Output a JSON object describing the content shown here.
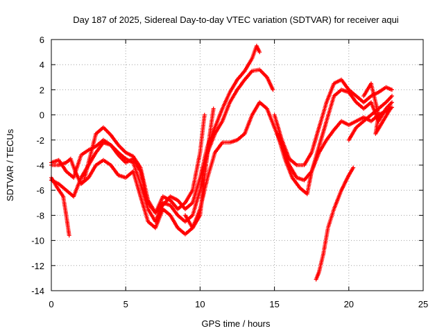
{
  "chart_data": {
    "type": "scatter",
    "title": "Day 187 of 2025, Sidereal Day-to-day VTEC variation (SDTVAR) for receiver aqui",
    "xlabel": "GPS time / hours",
    "ylabel": "SDTVAR / TECUs",
    "xlim": [
      0,
      25
    ],
    "ylim": [
      -14,
      6
    ],
    "xticks": [
      0,
      5,
      10,
      15,
      20,
      25
    ],
    "yticks": [
      -14,
      -12,
      -10,
      -8,
      -6,
      -4,
      -2,
      0,
      2,
      4,
      6
    ],
    "grid": true,
    "marker": "+",
    "color": "#ff0000",
    "series": [
      {
        "name": "track-1",
        "points": [
          [
            0,
            -3.8
          ],
          [
            0.5,
            -3.6
          ],
          [
            1,
            -4.5
          ],
          [
            1.5,
            -5
          ],
          [
            2,
            -3.2
          ],
          [
            2.5,
            -2.8
          ],
          [
            3,
            -2.5
          ],
          [
            3.5,
            -2
          ],
          [
            4,
            -2.4
          ],
          [
            4.5,
            -3.2
          ],
          [
            5,
            -3.8
          ],
          [
            5.5,
            -3.5
          ],
          [
            6,
            -4.5
          ],
          [
            6.5,
            -7
          ],
          [
            7,
            -7.8
          ],
          [
            7.5,
            -7.2
          ],
          [
            8,
            -6.5
          ],
          [
            8.5,
            -6.8
          ],
          [
            9,
            -7.5
          ],
          [
            9.5,
            -7
          ],
          [
            10,
            -5
          ],
          [
            10.5,
            -2.5
          ],
          [
            11,
            -1
          ],
          [
            11.5,
            0.5
          ],
          [
            12,
            1.8
          ],
          [
            12.5,
            2.8
          ],
          [
            13,
            3.5
          ],
          [
            13.5,
            4.5
          ],
          [
            13.8,
            5.5
          ],
          [
            14,
            5
          ]
        ]
      },
      {
        "name": "track-2",
        "points": [
          [
            0,
            -5.2
          ],
          [
            0.5,
            -5.5
          ],
          [
            1,
            -6
          ],
          [
            1.5,
            -6.5
          ],
          [
            2,
            -5
          ],
          [
            2.5,
            -4
          ],
          [
            3,
            -3
          ],
          [
            3.5,
            -2.2
          ],
          [
            4,
            -2.4
          ],
          [
            4.5,
            -3
          ],
          [
            5,
            -3.5
          ],
          [
            5.5,
            -3.8
          ],
          [
            6,
            -5.5
          ],
          [
            6.5,
            -7.5
          ],
          [
            7,
            -8.5
          ],
          [
            7.5,
            -7
          ],
          [
            8,
            -7.2
          ],
          [
            8.5,
            -8
          ],
          [
            9,
            -8.5
          ],
          [
            9.5,
            -8
          ],
          [
            10,
            -6
          ],
          [
            10.5,
            -3
          ],
          [
            11,
            -1.5
          ],
          [
            11.5,
            -0.5
          ],
          [
            12,
            1
          ],
          [
            12.5,
            2
          ],
          [
            13,
            2.8
          ],
          [
            13.5,
            3.5
          ],
          [
            14,
            3.6
          ],
          [
            14.5,
            3
          ],
          [
            14.9,
            2
          ]
        ]
      },
      {
        "name": "track-3",
        "points": [
          [
            2.2,
            -5.2
          ],
          [
            2.5,
            -3.8
          ],
          [
            3,
            -1.5
          ],
          [
            3.5,
            -1
          ],
          [
            4,
            -1.6
          ],
          [
            4.5,
            -2.4
          ],
          [
            5,
            -3
          ],
          [
            5.5,
            -3.3
          ],
          [
            6,
            -4.2
          ],
          [
            6.5,
            -6.8
          ],
          [
            7,
            -7.8
          ],
          [
            7.5,
            -6.5
          ],
          [
            8,
            -6.8
          ],
          [
            8.5,
            -7.5
          ],
          [
            9,
            -7
          ],
          [
            9.5,
            -6
          ],
          [
            10,
            -3
          ],
          [
            10.3,
            0
          ]
        ]
      },
      {
        "name": "track-4",
        "points": [
          [
            0,
            -4
          ],
          [
            0.5,
            -4
          ],
          [
            1,
            -3.8
          ],
          [
            1.3,
            -3.5
          ],
          [
            1.6,
            -4.5
          ],
          [
            2,
            -5.5
          ],
          [
            2.5,
            -5
          ],
          [
            3,
            -4
          ],
          [
            3.5,
            -3.6
          ],
          [
            4,
            -4
          ],
          [
            4.5,
            -4.8
          ],
          [
            5,
            -5
          ],
          [
            5.5,
            -4.5
          ],
          [
            6,
            -6.5
          ],
          [
            6.5,
            -8.5
          ],
          [
            7,
            -9
          ],
          [
            7.5,
            -7.5
          ],
          [
            8,
            -8
          ],
          [
            8.5,
            -9
          ],
          [
            9,
            -9.5
          ],
          [
            9.5,
            -9
          ],
          [
            10,
            -7.5
          ],
          [
            10.5,
            -5
          ],
          [
            11,
            -3
          ],
          [
            11.5,
            -2.2
          ],
          [
            12,
            -2.2
          ],
          [
            12.5,
            -2
          ],
          [
            13,
            -1.5
          ],
          [
            13.5,
            0
          ],
          [
            14,
            1
          ],
          [
            14.5,
            0.5
          ],
          [
            15,
            -1
          ],
          [
            15.5,
            -2.5
          ],
          [
            16,
            -4
          ],
          [
            16.5,
            -5
          ],
          [
            17,
            -5.2
          ],
          [
            17.5,
            -4.5
          ],
          [
            18,
            -3
          ],
          [
            18.5,
            -2
          ],
          [
            19,
            -1.2
          ],
          [
            19.5,
            -0.5
          ],
          [
            20,
            -0.8
          ],
          [
            20.5,
            -0.5
          ],
          [
            21,
            -0.2
          ],
          [
            21.5,
            -0.5
          ],
          [
            22,
            0
          ],
          [
            22.5,
            0.3
          ],
          [
            22.9,
            0.6
          ]
        ]
      },
      {
        "name": "track-5",
        "points": [
          [
            0,
            -5
          ],
          [
            0.4,
            -5.8
          ],
          [
            0.8,
            -6.5
          ],
          [
            1,
            -8
          ],
          [
            1.2,
            -9.6
          ]
        ]
      },
      {
        "name": "track-6",
        "points": [
          [
            9,
            -8
          ],
          [
            9.5,
            -9
          ],
          [
            10,
            -8
          ],
          [
            10.3,
            -5
          ],
          [
            10.6,
            -2
          ],
          [
            10.9,
            0.5
          ]
        ]
      },
      {
        "name": "track-7",
        "points": [
          [
            15,
            0
          ],
          [
            15.5,
            -2
          ],
          [
            16,
            -3.5
          ],
          [
            16.5,
            -4
          ],
          [
            17,
            -4
          ],
          [
            17.5,
            -3
          ],
          [
            18,
            -1
          ],
          [
            18.5,
            1
          ],
          [
            19,
            2.5
          ],
          [
            19.5,
            2.8
          ],
          [
            20,
            2
          ],
          [
            20.5,
            1.5
          ],
          [
            21,
            1
          ],
          [
            21.5,
            1.5
          ],
          [
            22,
            1.8
          ],
          [
            22.5,
            2.2
          ],
          [
            22.9,
            2
          ]
        ]
      },
      {
        "name": "track-8",
        "points": [
          [
            15.2,
            -1.5
          ],
          [
            15.7,
            -3.5
          ],
          [
            16.2,
            -5
          ],
          [
            16.7,
            -5.8
          ],
          [
            17.2,
            -6.3
          ],
          [
            17.5,
            -4.5
          ],
          [
            18,
            -2.5
          ],
          [
            18.5,
            -0.5
          ],
          [
            19,
            1.5
          ],
          [
            19.5,
            2
          ],
          [
            20,
            1.8
          ],
          [
            20.5,
            1
          ],
          [
            21,
            0.5
          ],
          [
            21.5,
            1
          ],
          [
            22,
            -0.5
          ],
          [
            22.5,
            0.5
          ],
          [
            22.9,
            1
          ]
        ]
      },
      {
        "name": "track-9",
        "points": [
          [
            17.8,
            -13.1
          ],
          [
            18,
            -12.5
          ],
          [
            18.3,
            -11
          ],
          [
            18.6,
            -9
          ],
          [
            19,
            -7.5
          ],
          [
            19.5,
            -6
          ],
          [
            20,
            -4.8
          ],
          [
            20.3,
            -4.2
          ]
        ]
      },
      {
        "name": "track-10",
        "points": [
          [
            20,
            -2
          ],
          [
            20.5,
            -1
          ],
          [
            21,
            -0.5
          ],
          [
            21.5,
            0
          ],
          [
            22,
            0.5
          ],
          [
            22.5,
            1
          ],
          [
            22.9,
            1.5
          ]
        ]
      },
      {
        "name": "track-11",
        "points": [
          [
            21,
            1.5
          ],
          [
            21.5,
            2.5
          ],
          [
            22,
            0
          ],
          [
            21.8,
            -1.5
          ],
          [
            22.3,
            -0.5
          ],
          [
            22.8,
            0.5
          ]
        ]
      }
    ]
  }
}
